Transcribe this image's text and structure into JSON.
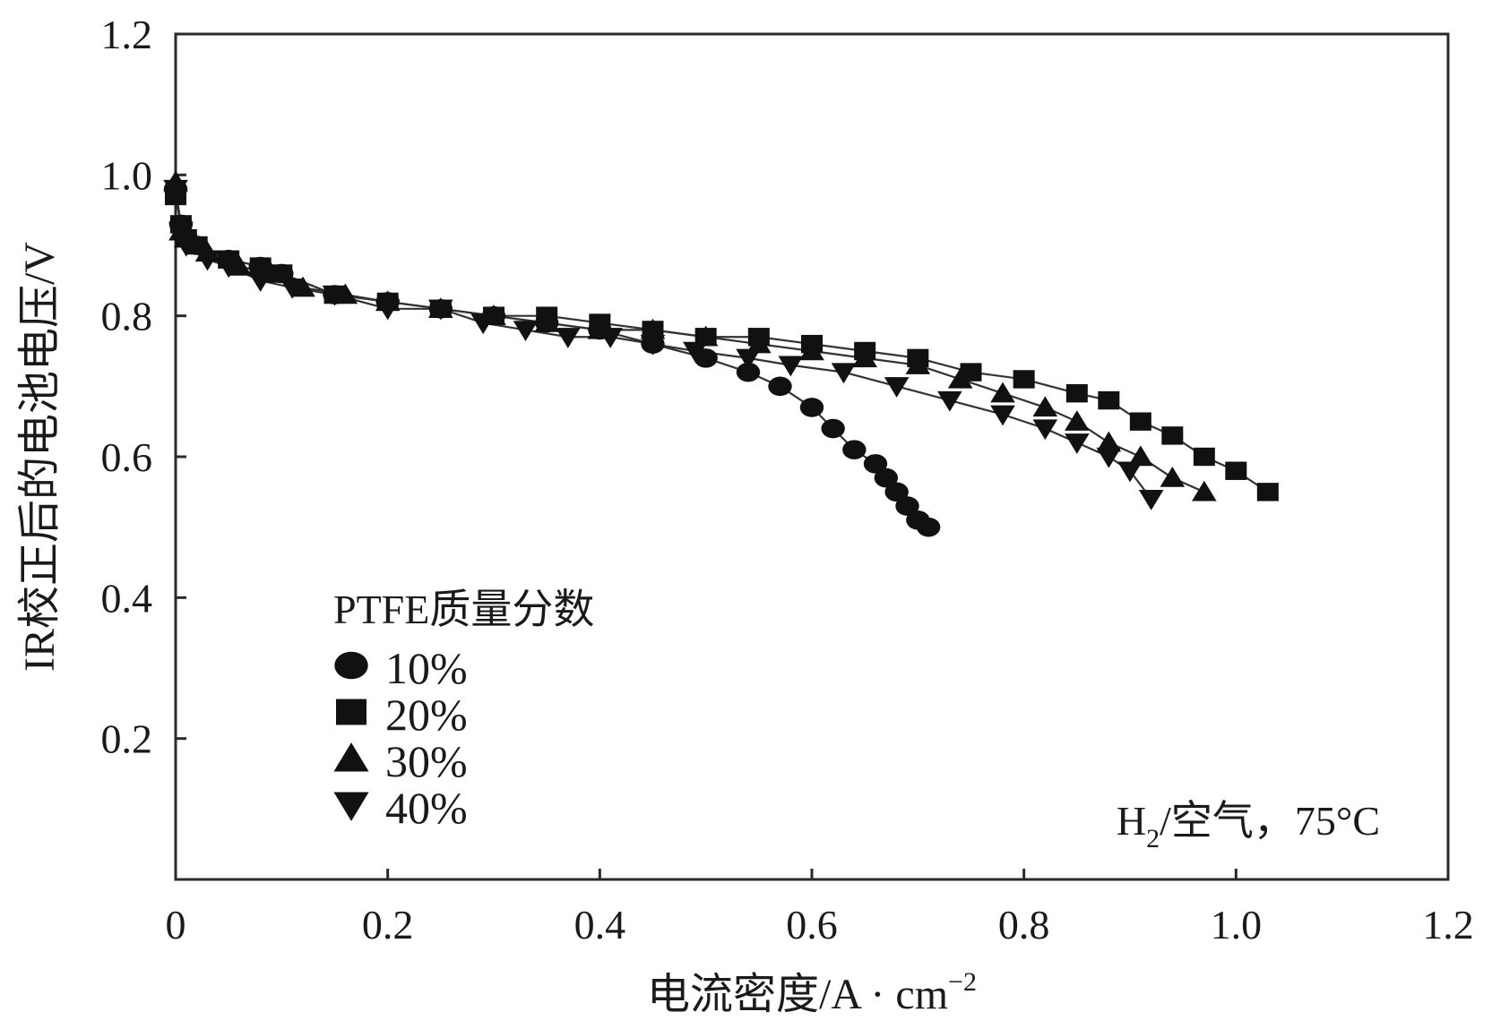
{
  "chart_data": {
    "type": "line",
    "title": "",
    "xlabel": "电流密度/A · cm",
    "xlabel_superscript": "−2",
    "ylabel": "IR校正后的电池电压/V",
    "xlim": [
      0,
      1.2
    ],
    "ylim": [
      0,
      1.2
    ],
    "x_ticks": [
      0,
      0.2,
      0.4,
      0.6,
      0.8,
      1.0,
      1.2
    ],
    "x_tick_labels": [
      "0",
      "0.2",
      "0.4",
      "0.6",
      "0.8",
      "1.0",
      "1.2"
    ],
    "y_ticks": [
      0.2,
      0.4,
      0.6,
      0.8,
      1.0,
      1.2
    ],
    "y_tick_labels": [
      "0.2",
      "0.4",
      "0.6",
      "0.8",
      "1.0",
      "1.2"
    ],
    "grid": false,
    "legend": {
      "title": "PTFE质量分数",
      "position": "bottom-left"
    },
    "annotation": {
      "prefix": "H",
      "subscript": "2",
      "suffix": "/空气，75°C",
      "position": "bottom-right"
    },
    "series": [
      {
        "name": "10%",
        "marker": "circle",
        "x": [
          0.0,
          0.005,
          0.01,
          0.02,
          0.05,
          0.08,
          0.1,
          0.15,
          0.2,
          0.25,
          0.3,
          0.35,
          0.4,
          0.45,
          0.5,
          0.54,
          0.57,
          0.6,
          0.62,
          0.64,
          0.66,
          0.67,
          0.68,
          0.69,
          0.7,
          0.71
        ],
        "y": [
          0.98,
          0.93,
          0.91,
          0.9,
          0.88,
          0.87,
          0.86,
          0.83,
          0.82,
          0.81,
          0.8,
          0.79,
          0.78,
          0.76,
          0.74,
          0.72,
          0.7,
          0.67,
          0.64,
          0.61,
          0.59,
          0.57,
          0.55,
          0.53,
          0.51,
          0.5
        ]
      },
      {
        "name": "20%",
        "marker": "square",
        "x": [
          0.0,
          0.005,
          0.01,
          0.02,
          0.05,
          0.08,
          0.1,
          0.15,
          0.2,
          0.25,
          0.3,
          0.35,
          0.4,
          0.45,
          0.5,
          0.55,
          0.6,
          0.65,
          0.7,
          0.75,
          0.8,
          0.85,
          0.88,
          0.91,
          0.94,
          0.97,
          1.0,
          1.03
        ],
        "y": [
          0.97,
          0.93,
          0.91,
          0.9,
          0.88,
          0.87,
          0.86,
          0.83,
          0.82,
          0.81,
          0.8,
          0.8,
          0.79,
          0.78,
          0.77,
          0.77,
          0.76,
          0.75,
          0.74,
          0.72,
          0.71,
          0.69,
          0.68,
          0.65,
          0.63,
          0.6,
          0.58,
          0.55
        ]
      },
      {
        "name": "30%",
        "marker": "triangle-up",
        "x": [
          0.0,
          0.005,
          0.01,
          0.03,
          0.06,
          0.09,
          0.12,
          0.16,
          0.2,
          0.25,
          0.3,
          0.35,
          0.4,
          0.45,
          0.5,
          0.55,
          0.6,
          0.65,
          0.7,
          0.74,
          0.78,
          0.82,
          0.85,
          0.88,
          0.91,
          0.94,
          0.97
        ],
        "y": [
          0.99,
          0.92,
          0.91,
          0.89,
          0.87,
          0.86,
          0.84,
          0.83,
          0.82,
          0.81,
          0.8,
          0.79,
          0.78,
          0.78,
          0.77,
          0.76,
          0.75,
          0.74,
          0.73,
          0.71,
          0.69,
          0.67,
          0.65,
          0.62,
          0.6,
          0.57,
          0.55
        ]
      },
      {
        "name": "40%",
        "marker": "triangle-down",
        "x": [
          0.0,
          0.005,
          0.01,
          0.03,
          0.05,
          0.08,
          0.11,
          0.15,
          0.2,
          0.25,
          0.29,
          0.33,
          0.37,
          0.41,
          0.45,
          0.49,
          0.54,
          0.58,
          0.63,
          0.68,
          0.73,
          0.78,
          0.82,
          0.85,
          0.88,
          0.9,
          0.92
        ],
        "y": [
          0.98,
          0.92,
          0.9,
          0.88,
          0.87,
          0.85,
          0.84,
          0.83,
          0.81,
          0.81,
          0.79,
          0.78,
          0.77,
          0.77,
          0.76,
          0.75,
          0.74,
          0.73,
          0.72,
          0.7,
          0.68,
          0.66,
          0.64,
          0.62,
          0.6,
          0.58,
          0.54
        ]
      }
    ]
  }
}
